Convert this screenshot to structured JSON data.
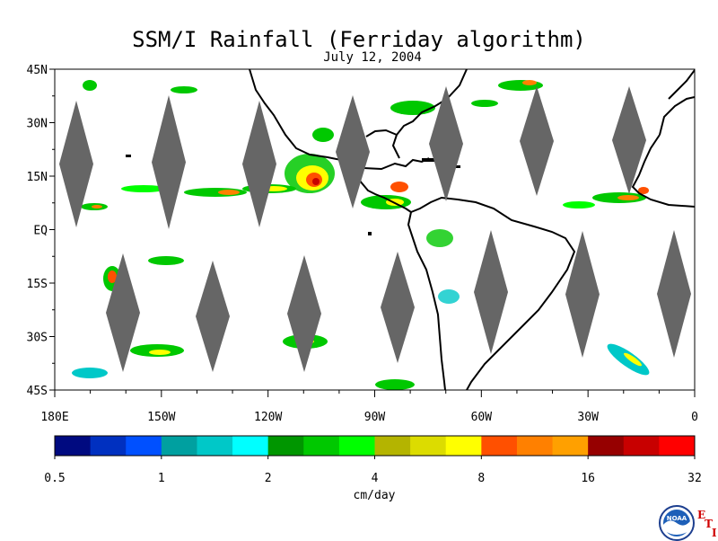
{
  "map": {
    "title": "SSM/I Rainfall (Ferriday algorithm)",
    "date": "July 12, 2004",
    "extent": {
      "lon_min": -180,
      "lon_max": 0,
      "lat_min": -45,
      "lat_max": 45
    },
    "lat_ticks": [
      {
        "value": 45,
        "label": "45N"
      },
      {
        "value": 30,
        "label": "30N"
      },
      {
        "value": 15,
        "label": "15N"
      },
      {
        "value": 0,
        "label": "EQ"
      },
      {
        "value": -15,
        "label": "15S"
      },
      {
        "value": -30,
        "label": "30S"
      },
      {
        "value": -45,
        "label": "45S"
      }
    ],
    "lon_ticks": [
      {
        "value": -180,
        "label": "180E"
      },
      {
        "value": -150,
        "label": "150W"
      },
      {
        "value": -120,
        "label": "120W"
      },
      {
        "value": -90,
        "label": "90W"
      },
      {
        "value": -60,
        "label": "60W"
      },
      {
        "value": -30,
        "label": "30W"
      },
      {
        "value": 0,
        "label": "0"
      }
    ],
    "no_data_color": "#666666"
  },
  "colorbar": {
    "unit": "cm/day",
    "colors": [
      "#000a80",
      "#0030c0",
      "#0050ff",
      "#00a0a0",
      "#00c8c8",
      "#00ffff",
      "#009600",
      "#00c800",
      "#00ff00",
      "#b4b400",
      "#dcdc00",
      "#ffff00",
      "#ff5000",
      "#ff8000",
      "#ffa000",
      "#960000",
      "#c80000",
      "#ff0000"
    ],
    "tick_labels": [
      "0.5",
      "1",
      "2",
      "4",
      "8",
      "16",
      "32"
    ]
  },
  "logo": {
    "text": "NOAA",
    "letters": [
      "E",
      "T",
      "I"
    ]
  }
}
